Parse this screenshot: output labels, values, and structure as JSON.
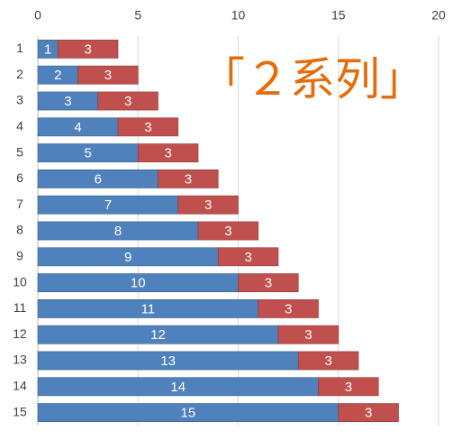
{
  "chart_data": {
    "type": "stacked-barh",
    "annotation": "「２系列」",
    "categories": [
      "1",
      "2",
      "3",
      "4",
      "5",
      "6",
      "7",
      "8",
      "9",
      "10",
      "11",
      "12",
      "13",
      "14",
      "15"
    ],
    "series": [
      {
        "color": "#4f81bd",
        "values": [
          1,
          2,
          3,
          4,
          5,
          6,
          7,
          8,
          9,
          10,
          11,
          12,
          13,
          14,
          15
        ]
      },
      {
        "color": "#c0504d",
        "values": [
          3,
          3,
          3,
          3,
          3,
          3,
          3,
          3,
          3,
          3,
          3,
          3,
          3,
          3,
          3
        ]
      }
    ],
    "xlim": [
      0,
      20
    ],
    "xticks": [
      0,
      5,
      10,
      15,
      20
    ],
    "grid": true
  }
}
